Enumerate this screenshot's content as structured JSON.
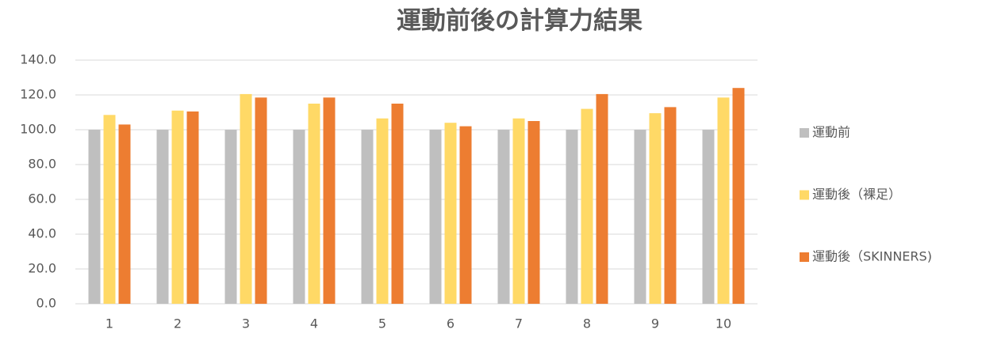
{
  "chart_data": {
    "type": "bar",
    "title": "運動前後の計算力結果",
    "categories": [
      "1",
      "2",
      "3",
      "4",
      "5",
      "6",
      "7",
      "8",
      "9",
      "10"
    ],
    "series": [
      {
        "name": "運動前",
        "color": "#bfbfbf",
        "values": [
          100,
          100,
          100,
          100,
          100,
          100,
          100,
          100,
          100,
          100
        ]
      },
      {
        "name": "運動後（裸足）",
        "color": "#ffd966",
        "values": [
          108.5,
          111,
          120.5,
          115,
          106.5,
          104,
          106.5,
          112,
          109.5,
          118.5
        ]
      },
      {
        "name": "運動後（SKINNERS)",
        "color": "#ed7d31",
        "values": [
          103,
          110.5,
          118.5,
          118.5,
          115,
          102,
          105,
          120.5,
          113,
          124
        ]
      }
    ],
    "ylim": [
      0,
      140
    ],
    "yticks": [
      {
        "value": 0,
        "label": "0.0"
      },
      {
        "value": 20,
        "label": "20.0"
      },
      {
        "value": 40,
        "label": "40.0"
      },
      {
        "value": 60,
        "label": "60.0"
      },
      {
        "value": 80,
        "label": "80.0"
      },
      {
        "value": 100,
        "label": "100.0"
      },
      {
        "value": 120,
        "label": "120.0"
      },
      {
        "value": 140,
        "label": "140.0"
      }
    ],
    "grid": true,
    "legend": "right"
  }
}
